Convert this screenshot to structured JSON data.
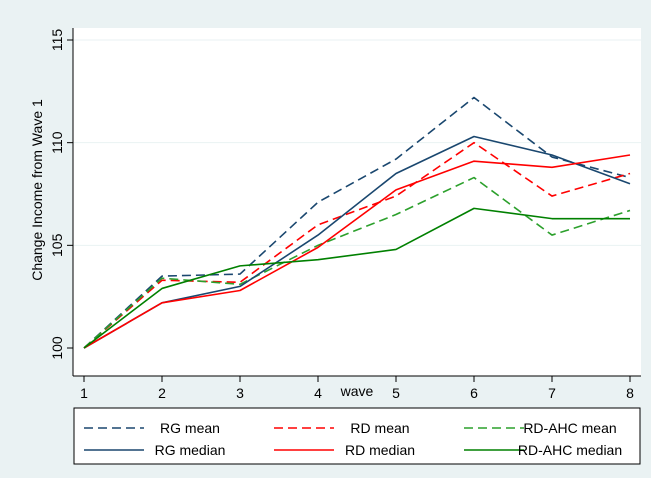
{
  "chart_data": {
    "type": "line",
    "title": "",
    "xlabel": "wave",
    "ylabel": "Change Income from Wave 1",
    "x": [
      1,
      2,
      3,
      4,
      5,
      6,
      7,
      8
    ],
    "xlim": [
      1,
      8
    ],
    "ylim": [
      100,
      115
    ],
    "yticks": [
      100,
      105,
      110,
      115
    ],
    "grid": "horizontal",
    "legend_position": "bottom",
    "series": [
      {
        "name": "RG mean",
        "color": "#1a476f",
        "dash": true,
        "values": [
          100,
          103.5,
          103.6,
          107.1,
          109.2,
          112.2,
          109.3,
          108.3
        ]
      },
      {
        "name": "RD mean",
        "color": "#ff0000",
        "dash": true,
        "values": [
          100,
          103.3,
          103.2,
          106.0,
          107.4,
          110.0,
          107.4,
          108.5
        ]
      },
      {
        "name": "RD-AHC mean",
        "color": "#2ca02c",
        "dash": true,
        "values": [
          100,
          103.4,
          103.1,
          105.0,
          106.5,
          108.3,
          105.5,
          106.7
        ]
      },
      {
        "name": "RG median",
        "color": "#1a476f",
        "dash": false,
        "values": [
          100,
          102.2,
          103.0,
          105.5,
          108.5,
          110.3,
          109.4,
          108.0
        ]
      },
      {
        "name": "RD median",
        "color": "#ff0000",
        "dash": false,
        "values": [
          100,
          102.2,
          102.8,
          104.9,
          107.7,
          109.1,
          108.8,
          109.4
        ]
      },
      {
        "name": "RD-AHC median",
        "color": "#008000",
        "dash": false,
        "values": [
          100,
          102.9,
          104.0,
          104.3,
          104.8,
          106.8,
          106.3,
          106.3
        ]
      }
    ]
  }
}
